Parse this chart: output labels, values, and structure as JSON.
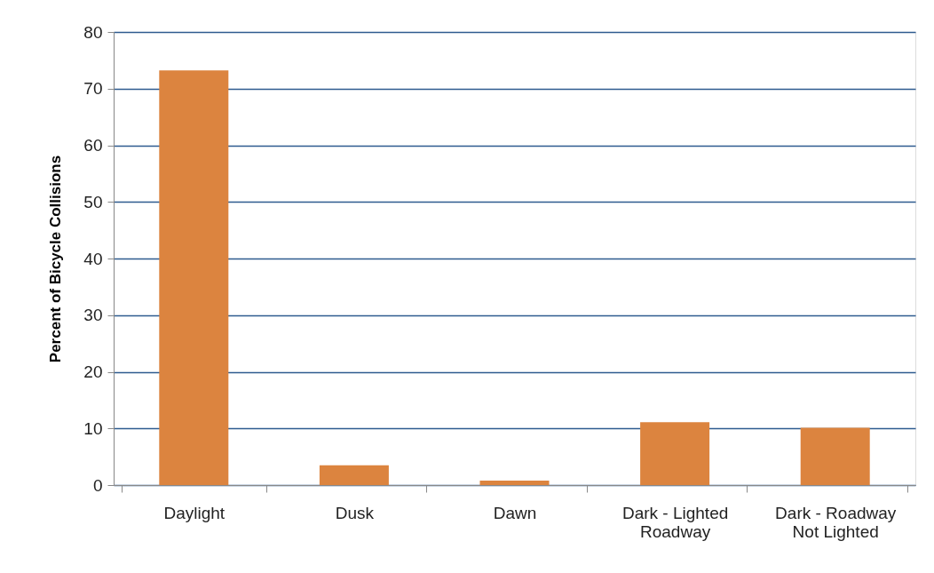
{
  "chart_data": {
    "type": "bar",
    "ylabel": "Percent of Bicycle Collisions",
    "categories": [
      "Daylight",
      "Dusk",
      "Dawn",
      "Dark - Lighted\nRoadway",
      "Dark - Roadway\nNot Lighted"
    ],
    "values": [
      73.2,
      3.5,
      0.8,
      11.1,
      10.1
    ],
    "color": "#dc843f",
    "ylim": [
      0,
      80
    ],
    "yticks": [
      0,
      10,
      20,
      30,
      40,
      50,
      60,
      70,
      80
    ],
    "grid": "y"
  }
}
